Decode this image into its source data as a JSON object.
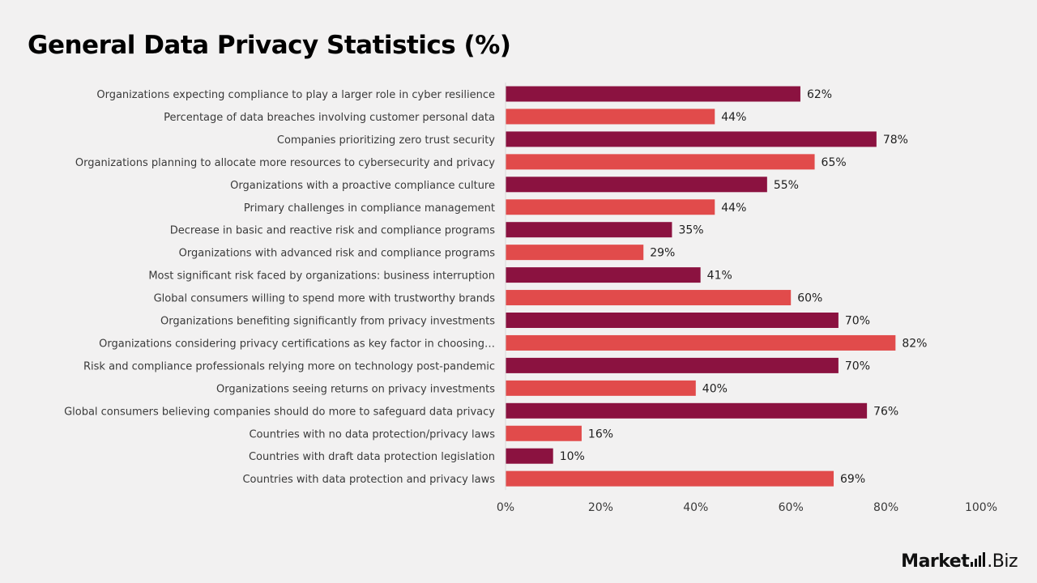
{
  "chart_data": {
    "type": "bar",
    "orientation": "horizontal",
    "title": "General Data Privacy Statistics (%)",
    "xlabel": "",
    "ylabel": "",
    "xlim": [
      0,
      100
    ],
    "x_ticks": [
      "0%",
      "20%",
      "40%",
      "60%",
      "80%",
      "100%"
    ],
    "grid": false,
    "legend": "none",
    "colors": [
      "#8b1240",
      "#e14b4b"
    ],
    "categories": [
      "Organizations expecting compliance to play a larger role in cyber resilience",
      "Percentage of data breaches involving customer personal data",
      "Companies prioritizing zero trust security",
      "Organizations planning to allocate more resources to cybersecurity and privacy",
      "Organizations with a proactive compliance culture",
      "Primary challenges in compliance management",
      "Decrease in basic and reactive risk and compliance programs",
      "Organizations with advanced risk and compliance programs",
      "Most significant risk faced by organizations: business interruption",
      "Global consumers willing to spend more with trustworthy brands",
      "Organizations benefiting significantly from privacy investments",
      "Organizations considering privacy certifications as key factor in choosing…",
      "Risk and compliance professionals relying more on technology post-pandemic",
      "Organizations seeing returns on privacy investments",
      "Global consumers believing companies should do more to safeguard data privacy",
      "Countries with no data protection/privacy laws",
      "Countries with draft data protection legislation",
      "Countries with data protection and privacy laws"
    ],
    "values": [
      62,
      44,
      78,
      65,
      55,
      44,
      35,
      29,
      41,
      60,
      70,
      82,
      70,
      40,
      76,
      16,
      10,
      69
    ],
    "value_labels": [
      "62%",
      "44%",
      "78%",
      "65%",
      "55%",
      "44%",
      "35%",
      "29%",
      "41%",
      "60%",
      "70%",
      "82%",
      "70%",
      "40%",
      "76%",
      "16%",
      "10%",
      "69%"
    ]
  },
  "brand": {
    "name_main": "Market",
    "name_suffix": ".Biz"
  }
}
